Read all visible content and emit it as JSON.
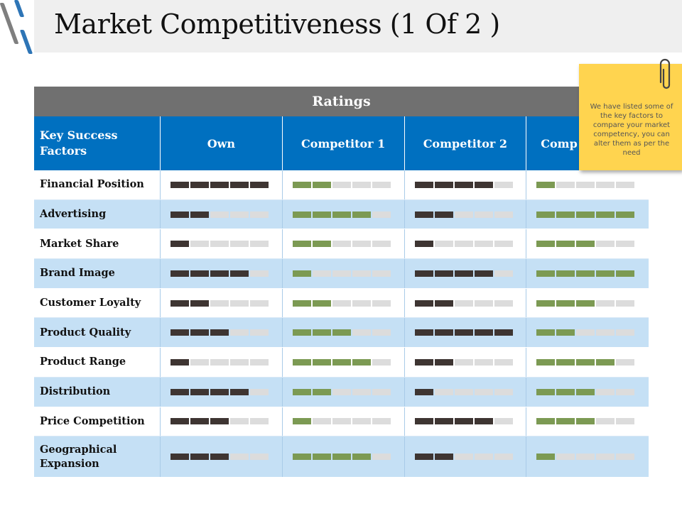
{
  "slide": {
    "title": "Market Competitiveness (1 Of 2 )"
  },
  "table": {
    "group_header": "Ratings",
    "factor_header": "Key Success Factors",
    "columns": [
      "Own",
      "Competitor 1",
      "Competitor 2",
      "Comp"
    ],
    "column_bar_colors": [
      "#3e3532",
      "#7c9a53",
      "#3e3532",
      "#7c9a53"
    ],
    "max_rating": 5,
    "rows": [
      {
        "factor": "Financial Position",
        "ratings": [
          5,
          2,
          4,
          1
        ]
      },
      {
        "factor": "Advertising",
        "ratings": [
          2,
          4,
          2,
          5
        ]
      },
      {
        "factor": "Market Share",
        "ratings": [
          1,
          2,
          1,
          3
        ]
      },
      {
        "factor": "Brand Image",
        "ratings": [
          4,
          1,
          4,
          5
        ]
      },
      {
        "factor": "Customer Loyalty",
        "ratings": [
          2,
          2,
          2,
          3
        ]
      },
      {
        "factor": "Product Quality",
        "ratings": [
          3,
          3,
          5,
          2
        ]
      },
      {
        "factor": "Product Range",
        "ratings": [
          1,
          4,
          2,
          4
        ]
      },
      {
        "factor": "Distribution",
        "ratings": [
          4,
          2,
          1,
          3
        ]
      },
      {
        "factor": "Price Competition",
        "ratings": [
          3,
          1,
          4,
          3
        ]
      },
      {
        "factor": "Geographical Expansion",
        "ratings": [
          3,
          4,
          2,
          1
        ]
      }
    ]
  },
  "note": {
    "text": "We have listed some of the key factors to compare your market competency, you can alter them as per the need",
    "icon": "paperclip-icon",
    "color": "#ffd44f"
  }
}
